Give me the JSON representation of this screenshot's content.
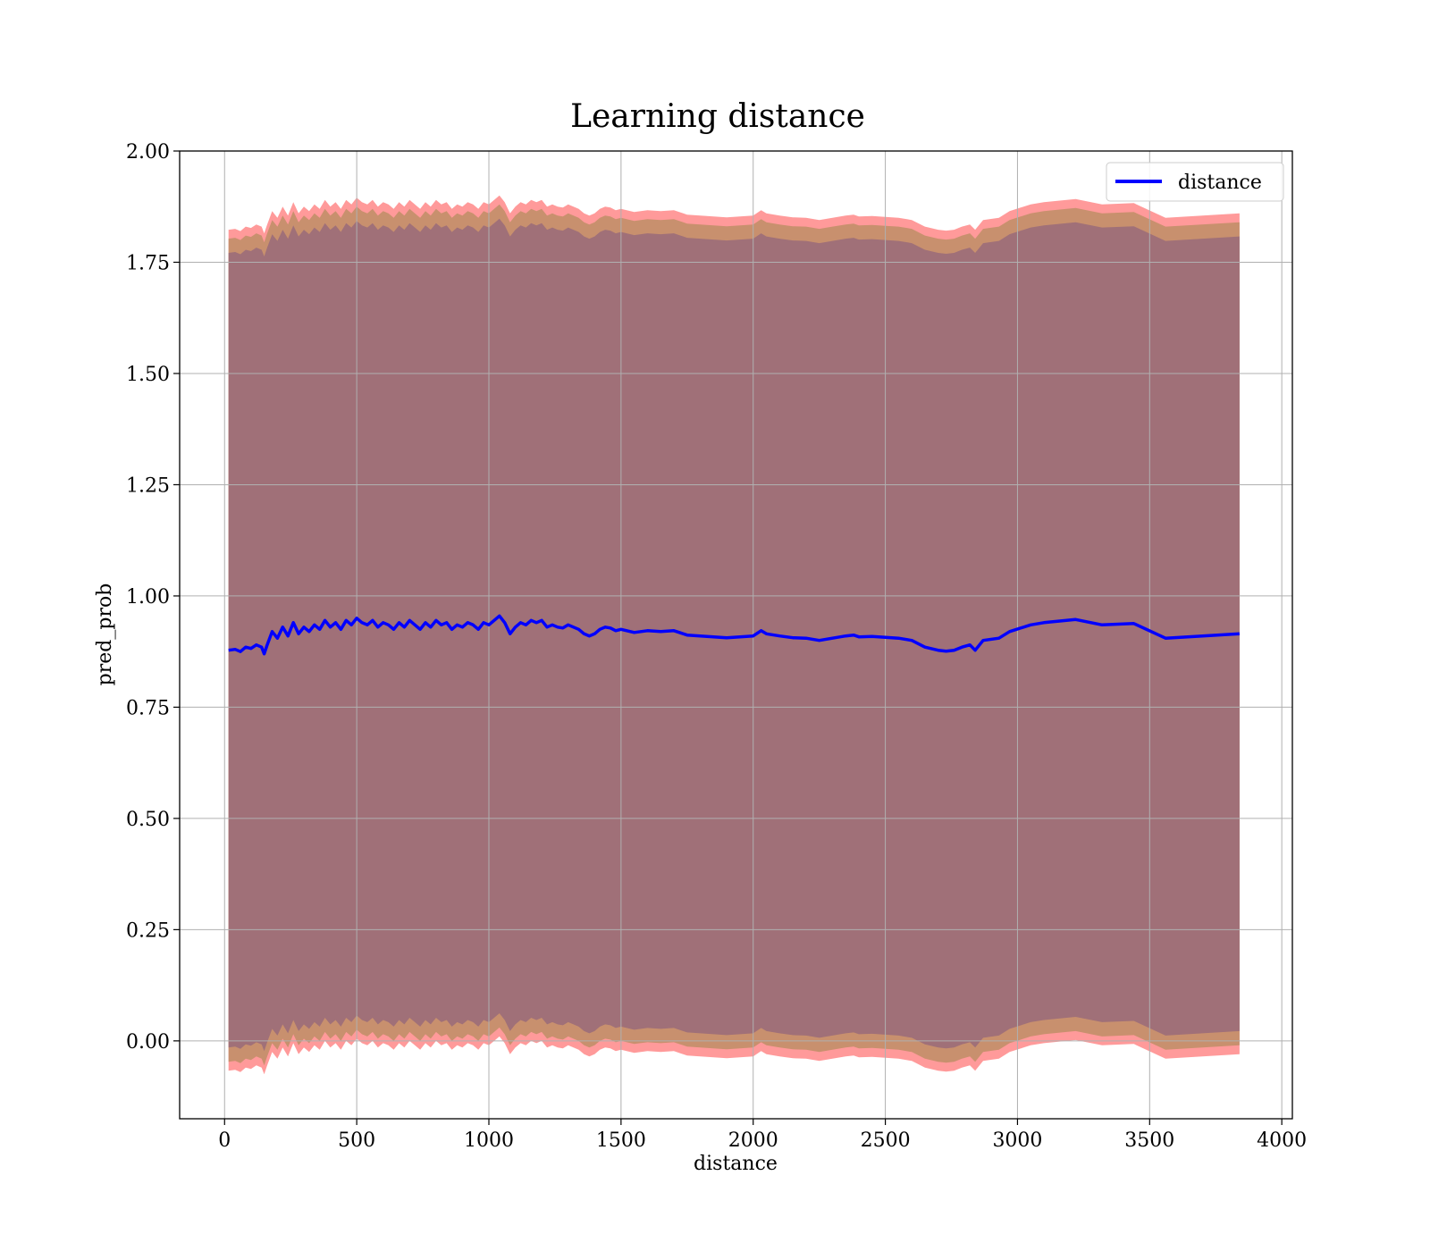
{
  "chart_data": {
    "type": "line",
    "title": "Learning distance",
    "xlabel": "distance",
    "ylabel": "pred_prob",
    "xlim": [
      -170,
      4040
    ],
    "ylim": [
      -0.175,
      2.0
    ],
    "xticks": [
      0,
      500,
      1000,
      1500,
      2000,
      2500,
      3000,
      3500,
      4000
    ],
    "xtick_labels": [
      "0",
      "500",
      "1000",
      "1500",
      "2000",
      "2500",
      "3000",
      "3500",
      "4000"
    ],
    "yticks": [
      0.0,
      0.25,
      0.5,
      0.75,
      1.0,
      1.25,
      1.5,
      1.75,
      2.0
    ],
    "ytick_labels": [
      "0.00",
      "0.25",
      "0.50",
      "0.75",
      "1.00",
      "1.25",
      "1.50",
      "1.75",
      "2.00"
    ],
    "grid": true,
    "legend": "top-right",
    "colors": {
      "line": "#0000ff",
      "outer_band": "#ff9a9a",
      "middle_band": "#c8906e",
      "inner_band": "#a07078"
    },
    "series": [
      {
        "name": "distance",
        "x": [
          15,
          40,
          60,
          80,
          100,
          120,
          140,
          150,
          160,
          180,
          200,
          220,
          240,
          260,
          280,
          300,
          320,
          340,
          360,
          380,
          400,
          420,
          440,
          460,
          480,
          500,
          520,
          540,
          560,
          580,
          600,
          620,
          640,
          660,
          680,
          700,
          720,
          740,
          760,
          780,
          800,
          820,
          840,
          860,
          880,
          900,
          920,
          940,
          960,
          980,
          1000,
          1020,
          1040,
          1060,
          1080,
          1100,
          1120,
          1140,
          1160,
          1180,
          1200,
          1220,
          1240,
          1260,
          1280,
          1300,
          1320,
          1340,
          1360,
          1380,
          1400,
          1420,
          1440,
          1460,
          1480,
          1500,
          1550,
          1600,
          1650,
          1700,
          1750,
          1800,
          1850,
          1900,
          1950,
          2000,
          2030,
          2050,
          2100,
          2150,
          2200,
          2250,
          2300,
          2350,
          2380,
          2400,
          2450,
          2500,
          2550,
          2600,
          2650,
          2700,
          2730,
          2760,
          2790,
          2820,
          2840,
          2870,
          2930,
          2970,
          3050,
          3100,
          3220,
          3320,
          3440,
          3560,
          3840
        ],
        "y": [
          0.878,
          0.88,
          0.875,
          0.885,
          0.882,
          0.89,
          0.885,
          0.87,
          0.888,
          0.92,
          0.905,
          0.93,
          0.91,
          0.94,
          0.915,
          0.93,
          0.92,
          0.935,
          0.925,
          0.945,
          0.93,
          0.94,
          0.925,
          0.945,
          0.935,
          0.95,
          0.94,
          0.935,
          0.945,
          0.93,
          0.94,
          0.935,
          0.925,
          0.94,
          0.93,
          0.945,
          0.935,
          0.925,
          0.94,
          0.93,
          0.945,
          0.935,
          0.94,
          0.925,
          0.935,
          0.93,
          0.94,
          0.935,
          0.925,
          0.94,
          0.935,
          0.945,
          0.955,
          0.94,
          0.915,
          0.93,
          0.94,
          0.935,
          0.945,
          0.94,
          0.945,
          0.93,
          0.935,
          0.93,
          0.928,
          0.935,
          0.93,
          0.925,
          0.915,
          0.91,
          0.915,
          0.925,
          0.93,
          0.928,
          0.922,
          0.925,
          0.918,
          0.922,
          0.92,
          0.922,
          0.912,
          0.91,
          0.908,
          0.906,
          0.908,
          0.91,
          0.922,
          0.915,
          0.91,
          0.906,
          0.905,
          0.9,
          0.905,
          0.91,
          0.912,
          0.908,
          0.909,
          0.907,
          0.905,
          0.9,
          0.885,
          0.878,
          0.876,
          0.878,
          0.885,
          0.89,
          0.878,
          0.9,
          0.905,
          0.92,
          0.935,
          0.94,
          0.947,
          0.935,
          0.938,
          0.905,
          0.915
        ]
      }
    ]
  },
  "legend_label": "distance"
}
